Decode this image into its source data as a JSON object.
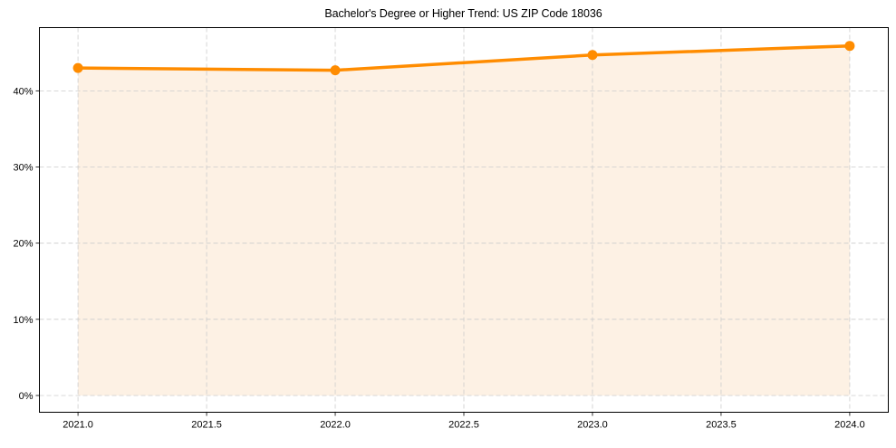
{
  "chart_data": {
    "type": "line",
    "title": "Bachelor's Degree or Higher Trend: US ZIP Code 18036",
    "xlabel": "",
    "ylabel": "",
    "x": [
      2021.0,
      2022.0,
      2023.0,
      2024.0
    ],
    "series": [
      {
        "name": "Bachelor's Degree or Higher",
        "values": [
          43.0,
          42.7,
          44.7,
          45.9
        ],
        "unit": "%",
        "color": "#ff8c00",
        "marker": "circle",
        "fill_under": true,
        "fill_color": "#fdf1e4"
      }
    ],
    "xticks": [
      2021.0,
      2021.5,
      2022.0,
      2022.5,
      2023.0,
      2023.5,
      2024.0
    ],
    "xtick_labels": [
      "2021.0",
      "2021.5",
      "2022.0",
      "2022.5",
      "2023.0",
      "2023.5",
      "2024.0"
    ],
    "yticks": [
      0,
      10,
      20,
      30,
      40
    ],
    "ytick_labels": [
      "0%",
      "10%",
      "20%",
      "30%",
      "40%"
    ],
    "xlim": [
      2020.85,
      2024.15
    ],
    "ylim": [
      -2.2,
      48.3
    ],
    "grid": true,
    "grid_style": "dashed",
    "legend": null
  },
  "colors": {
    "line": "#ff8c00",
    "fill": "#fdf1e4",
    "grid": "#cccccc",
    "axis": "#000000"
  }
}
